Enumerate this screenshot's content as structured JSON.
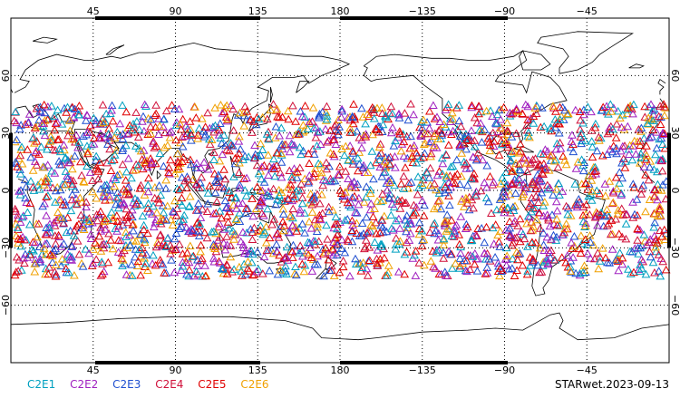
{
  "map": {
    "projection": "equirectangular",
    "lon_range": [
      0,
      360
    ],
    "lat_range": [
      -90,
      90
    ],
    "top_lon_ticks": [
      "45",
      "90",
      "135",
      "180",
      "−135",
      "−90",
      "−45"
    ],
    "bottom_lon_ticks": [
      "45",
      "90",
      "135",
      "180",
      "−135",
      "−90",
      "−45"
    ],
    "left_lat_ticks": [
      "60",
      "30",
      "0",
      "−30",
      "−60"
    ],
    "right_lat_ticks": [
      "60",
      "30",
      "0",
      "−30",
      "−60"
    ],
    "grid": "dotted",
    "marker_shape": "open-triangle",
    "observations_lat_band": [
      -45,
      45
    ]
  },
  "legend": {
    "items": [
      {
        "label": "C2E1",
        "color": "#00a0c0"
      },
      {
        "label": "C2E2",
        "color": "#a020c0"
      },
      {
        "label": "C2E3",
        "color": "#1f4fd0"
      },
      {
        "label": "C2E4",
        "color": "#d0103a"
      },
      {
        "label": "C2E5",
        "color": "#e00000"
      },
      {
        "label": "C2E6",
        "color": "#f0a000"
      }
    ]
  },
  "stamp": "STARwet.2023-09-13"
}
